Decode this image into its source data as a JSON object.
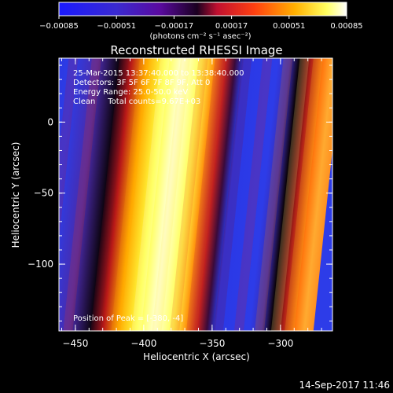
{
  "chart_data": {
    "type": "heatmap",
    "title": "Reconstructed RHESSI Image",
    "xlabel": "Heliocentric X (arcsec)",
    "ylabel": "Heliocentric Y (arcsec)",
    "xlim": [
      -462,
      -262
    ],
    "ylim": [
      -147,
      45
    ],
    "x_ticks": [
      -450,
      -400,
      -350,
      -300
    ],
    "y_ticks": [
      0,
      -50,
      -100
    ],
    "x_tick_labels": [
      "−450",
      "−400",
      "−350",
      "−300"
    ],
    "y_tick_labels": [
      "0",
      "−50",
      "−100"
    ],
    "colorbar": {
      "min": -0.00085,
      "max": 0.00085,
      "tick_labels": [
        "−0.00085",
        "−0.00051",
        "−0.00017",
        "0.00017",
        "0.00051",
        "0.00085"
      ],
      "unit": "(photons cm⁻² s⁻¹ asec⁻²)",
      "colormap": "blue-purple-red-yellow-white"
    },
    "annotations": [
      "25-Mar-2015 13:37:40.000 to 13:38:40.000",
      "Detectors: 3F 5F 6F 7F 8F 9F, Att 0",
      "Energy Range: 25.0-50.0 keV",
      "Clean     Total counts=9.67E+03"
    ],
    "peak_label": "Position of Peak = [-380, -4]",
    "bands": [
      {
        "x_center": -447,
        "value_frac": 0.1
      },
      {
        "x_center": -430,
        "value_frac": 0.3
      },
      {
        "x_center": -410,
        "value_frac": 0.05
      },
      {
        "x_center": -395,
        "value_frac": 0.6
      },
      {
        "x_center": -380,
        "value_frac": 1.0
      },
      {
        "x_center": -365,
        "value_frac": 0.8
      },
      {
        "x_center": -352,
        "value_frac": 0.3
      },
      {
        "x_center": -340,
        "value_frac": 0.1
      },
      {
        "x_center": -320,
        "value_frac": 0.05
      },
      {
        "x_center": -305,
        "value_frac": 0.15
      },
      {
        "x_center": -290,
        "value_frac": 0.5
      },
      {
        "x_center": -278,
        "value_frac": 0.9
      },
      {
        "x_center": -268,
        "value_frac": 0.7
      }
    ]
  },
  "footer": {
    "timestamp": "14-Sep-2017 11:46"
  }
}
